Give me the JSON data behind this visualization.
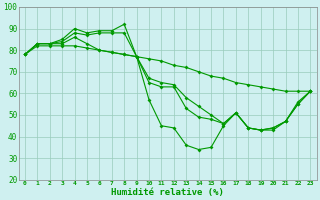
{
  "xlabel": "Humidité relative (%)",
  "background_color": "#cff0f0",
  "grid_color": "#99ccbb",
  "line_color": "#009900",
  "xlim": [
    -0.5,
    23.5
  ],
  "ylim": [
    20,
    100
  ],
  "yticks": [
    20,
    30,
    40,
    50,
    60,
    70,
    80,
    90,
    100
  ],
  "xticks": [
    0,
    1,
    2,
    3,
    4,
    5,
    6,
    7,
    8,
    9,
    10,
    11,
    12,
    13,
    14,
    15,
    16,
    17,
    18,
    19,
    20,
    21,
    22,
    23
  ],
  "series": [
    [
      78,
      83,
      83,
      85,
      90,
      88,
      89,
      89,
      92,
      77,
      57,
      45,
      44,
      36,
      34,
      35,
      45,
      51,
      44,
      43,
      43,
      47,
      56,
      61
    ],
    [
      78,
      83,
      83,
      84,
      88,
      87,
      88,
      88,
      88,
      77,
      65,
      63,
      63,
      53,
      49,
      48,
      46,
      51,
      44,
      43,
      44,
      47,
      55,
      61
    ],
    [
      78,
      83,
      83,
      83,
      86,
      83,
      80,
      79,
      78,
      77,
      67,
      65,
      64,
      58,
      54,
      50,
      46,
      51,
      44,
      43,
      44,
      47,
      55,
      61
    ],
    [
      78,
      82,
      82,
      82,
      82,
      81,
      80,
      79,
      78,
      77,
      76,
      75,
      73,
      72,
      70,
      68,
      67,
      65,
      64,
      63,
      62,
      61,
      61,
      61
    ]
  ]
}
